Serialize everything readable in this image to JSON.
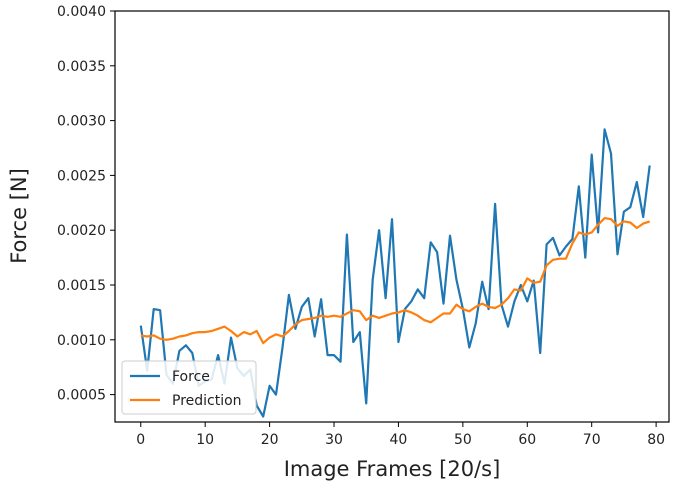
{
  "chart_data": {
    "type": "line",
    "title": "",
    "xlabel": "Image Frames [20/s]",
    "ylabel": "Force [N]",
    "xlim": [
      -4,
      82
    ],
    "ylim": [
      0.00025,
      0.004
    ],
    "xticks": [
      0,
      10,
      20,
      30,
      40,
      50,
      60,
      70,
      80
    ],
    "yticks": [
      0.0005,
      0.001,
      0.0015,
      0.002,
      0.0025,
      0.003,
      0.0035,
      0.004
    ],
    "xtick_labels": [
      "0",
      "10",
      "20",
      "30",
      "40",
      "50",
      "60",
      "70",
      "80"
    ],
    "ytick_labels": [
      "0.0005",
      "0.0010",
      "0.0015",
      "0.0020",
      "0.0025",
      "0.0030",
      "0.0035",
      "0.0040"
    ],
    "grid": false,
    "legend_position": "lower-left",
    "x": [
      0,
      1,
      2,
      3,
      4,
      5,
      6,
      7,
      8,
      9,
      10,
      11,
      12,
      13,
      14,
      15,
      16,
      17,
      18,
      19,
      20,
      21,
      22,
      23,
      24,
      25,
      26,
      27,
      28,
      29,
      30,
      31,
      32,
      33,
      34,
      35,
      36,
      37,
      38,
      39,
      40,
      41,
      42,
      43,
      44,
      45,
      46,
      47,
      48,
      49,
      50,
      51,
      52,
      53,
      54,
      55,
      56,
      57,
      58,
      59,
      60,
      61,
      62,
      63,
      64,
      65,
      66,
      67,
      68,
      69,
      70,
      71,
      72,
      73,
      74,
      75,
      76,
      77,
      78,
      79
    ],
    "series": [
      {
        "name": "Force",
        "color": "#1f77b4",
        "values": [
          0.00113,
          0.00072,
          0.00128,
          0.00127,
          0.00068,
          0.0006,
          0.0009,
          0.00095,
          0.00088,
          0.00058,
          0.00062,
          0.00064,
          0.00086,
          0.0006,
          0.00102,
          0.00074,
          0.00067,
          0.00073,
          0.0004,
          0.0003,
          0.00058,
          0.0005,
          0.00093,
          0.00141,
          0.0011,
          0.0013,
          0.00138,
          0.00103,
          0.00137,
          0.00086,
          0.00086,
          0.0008,
          0.00196,
          0.00098,
          0.00107,
          0.00042,
          0.00155,
          0.002,
          0.00138,
          0.0021,
          0.00098,
          0.00128,
          0.00135,
          0.00146,
          0.00138,
          0.00189,
          0.0018,
          0.00133,
          0.00195,
          0.00155,
          0.00128,
          0.00093,
          0.00115,
          0.00153,
          0.00128,
          0.00224,
          0.00132,
          0.00112,
          0.00135,
          0.0015,
          0.00135,
          0.00154,
          0.00088,
          0.00187,
          0.00193,
          0.00177,
          0.00185,
          0.00192,
          0.0024,
          0.00175,
          0.00269,
          0.00198,
          0.00292,
          0.0027,
          0.00178,
          0.00217,
          0.00221,
          0.00244,
          0.00212,
          0.00259
        ]
      },
      {
        "name": "Prediction",
        "color": "#ff7f0e",
        "values": [
          0.00104,
          0.00103,
          0.00104,
          0.00101,
          0.001,
          0.00101,
          0.00103,
          0.00104,
          0.00106,
          0.00107,
          0.00107,
          0.00108,
          0.0011,
          0.00112,
          0.00108,
          0.00103,
          0.00107,
          0.00105,
          0.00108,
          0.00097,
          0.00102,
          0.00105,
          0.00103,
          0.00108,
          0.00114,
          0.00118,
          0.00119,
          0.0012,
          0.00122,
          0.00121,
          0.00122,
          0.00121,
          0.00124,
          0.00127,
          0.00126,
          0.00118,
          0.00122,
          0.0012,
          0.00122,
          0.00124,
          0.00125,
          0.00127,
          0.00125,
          0.00122,
          0.00118,
          0.00116,
          0.0012,
          0.00124,
          0.00124,
          0.00132,
          0.00128,
          0.00126,
          0.0013,
          0.00133,
          0.0013,
          0.00129,
          0.00132,
          0.00138,
          0.00146,
          0.00145,
          0.00156,
          0.00152,
          0.00153,
          0.00168,
          0.00173,
          0.00174,
          0.00174,
          0.00188,
          0.00198,
          0.00196,
          0.00198,
          0.00205,
          0.00211,
          0.0021,
          0.00204,
          0.00208,
          0.00207,
          0.00202,
          0.00206,
          0.00208
        ]
      }
    ]
  }
}
